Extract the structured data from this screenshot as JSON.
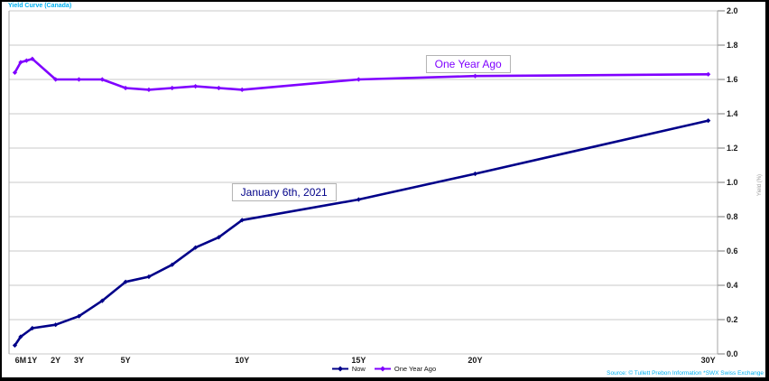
{
  "window": {
    "source_note": "Source: © Tullett Prebon Information *SWX Swiss Exchange"
  },
  "colors": {
    "title": "#00b0f0",
    "source": "#00b0f0",
    "grid": "#c9c9c9",
    "axis": "#a6a6a6",
    "tick_text": "#1a1a1a",
    "now_line": "#000089",
    "one_year_ago_line": "#7f00ff"
  },
  "chart_data": {
    "type": "line",
    "title": "Yield Curve (Canada)",
    "ylabel": "Yield (%)",
    "ylim": [
      0.0,
      2.0
    ],
    "ytick_step": 0.2,
    "ytick_labels": [
      "0.0",
      "0.2",
      "0.4",
      "0.6",
      "0.8",
      "1.0",
      "1.2",
      "1.4",
      "1.6",
      "1.8",
      "2.0"
    ],
    "x_unit": "years",
    "xmax_years": 30.4,
    "grid": "horizontal-only",
    "legend_position": "bottom-center",
    "xticks": [
      {
        "label": "6M",
        "years": 0.5
      },
      {
        "label": "1Y",
        "years": 1
      },
      {
        "label": "2Y",
        "years": 2
      },
      {
        "label": "3Y",
        "years": 3
      },
      {
        "label": "5Y",
        "years": 5
      },
      {
        "label": "10Y",
        "years": 10
      },
      {
        "label": "15Y",
        "years": 15
      },
      {
        "label": "20Y",
        "years": 20
      },
      {
        "label": "30Y",
        "years": 30
      }
    ],
    "series": [
      {
        "name": "Now",
        "color": "#000089",
        "points": [
          [
            0.25,
            0.05
          ],
          [
            0.5,
            0.1
          ],
          [
            1,
            0.15
          ],
          [
            2,
            0.17
          ],
          [
            3,
            0.22
          ],
          [
            4,
            0.31
          ],
          [
            5,
            0.42
          ],
          [
            6,
            0.45
          ],
          [
            7,
            0.52
          ],
          [
            8,
            0.62
          ],
          [
            9,
            0.68
          ],
          [
            10,
            0.78
          ],
          [
            15,
            0.9
          ],
          [
            20,
            1.05
          ],
          [
            30,
            1.36
          ]
        ]
      },
      {
        "name": "One Year Ago",
        "color": "#7f00ff",
        "points": [
          [
            0.25,
            1.64
          ],
          [
            0.5,
            1.7
          ],
          [
            0.75,
            1.71
          ],
          [
            1,
            1.72
          ],
          [
            2,
            1.6
          ],
          [
            3,
            1.6
          ],
          [
            4,
            1.6
          ],
          [
            5,
            1.55
          ],
          [
            6,
            1.54
          ],
          [
            7,
            1.55
          ],
          [
            8,
            1.56
          ],
          [
            9,
            1.55
          ],
          [
            10,
            1.54
          ],
          [
            15,
            1.6
          ],
          [
            20,
            1.62
          ],
          [
            30,
            1.63
          ]
        ]
      }
    ],
    "annotations": [
      {
        "text": "January 6th, 2021",
        "series": "Now",
        "color": "#000089",
        "years": 11.8,
        "value": 0.94
      },
      {
        "text": "One Year Ago",
        "series": "One Year Ago",
        "color": "#7f00ff",
        "years": 19.7,
        "value": 1.69
      }
    ]
  },
  "legend": {
    "items": [
      {
        "label": "Now",
        "color": "#000089"
      },
      {
        "label": "One Year Ago",
        "color": "#7f00ff"
      }
    ]
  }
}
